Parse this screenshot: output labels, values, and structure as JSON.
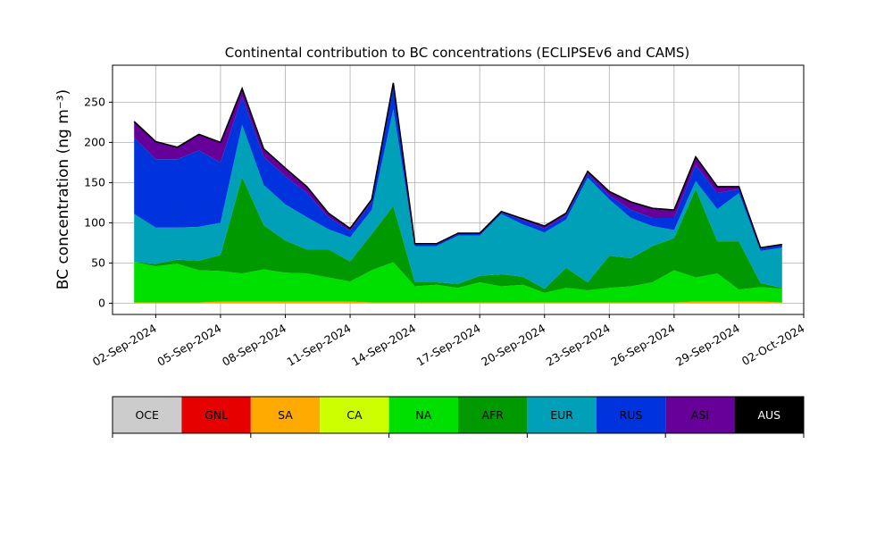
{
  "chart_data": {
    "type": "area",
    "stacked": true,
    "title": "Continental contribution to BC concentrations (ECLIPSEv6 and CAMS)",
    "ylabel": "BC concentration (ng m⁻³)",
    "xlabel": "",
    "grid": true,
    "x_axis_kind": "date",
    "xlim": [
      "2024-08-31",
      "2024-10-02"
    ],
    "ylim": [
      -14,
      296
    ],
    "x_ticks": [
      "2024-09-02",
      "2024-09-05",
      "2024-09-08",
      "2024-09-11",
      "2024-09-14",
      "2024-09-17",
      "2024-09-20",
      "2024-09-23",
      "2024-09-26",
      "2024-09-29",
      "2024-10-02"
    ],
    "x_tick_labels": [
      "02-Sep-2024",
      "05-Sep-2024",
      "08-Sep-2024",
      "11-Sep-2024",
      "14-Sep-2024",
      "17-Sep-2024",
      "20-Sep-2024",
      "23-Sep-2024",
      "26-Sep-2024",
      "29-Sep-2024",
      "02-Oct-2024"
    ],
    "y_ticks": [
      0,
      50,
      100,
      150,
      200,
      250
    ],
    "y_tick_labels": [
      "0",
      "50",
      "100",
      "150",
      "200",
      "250"
    ],
    "x": [
      "2024-09-01",
      "2024-09-02",
      "2024-09-03",
      "2024-09-04",
      "2024-09-05",
      "2024-09-06",
      "2024-09-07",
      "2024-09-08",
      "2024-09-09",
      "2024-09-10",
      "2024-09-11",
      "2024-09-12",
      "2024-09-13",
      "2024-09-14",
      "2024-09-15",
      "2024-09-16",
      "2024-09-17",
      "2024-09-18",
      "2024-09-19",
      "2024-09-20",
      "2024-09-21",
      "2024-09-22",
      "2024-09-23",
      "2024-09-24",
      "2024-09-25",
      "2024-09-26",
      "2024-09-27",
      "2024-09-28",
      "2024-09-29",
      "2024-09-30",
      "2024-10-01"
    ],
    "series": [
      {
        "name": "OCE",
        "color": "#cccccc",
        "values": [
          0,
          0,
          0,
          0,
          0,
          0,
          0,
          0,
          0,
          0,
          0,
          0,
          0,
          0,
          0,
          0,
          0,
          0,
          0,
          0,
          0,
          0,
          0,
          0,
          0,
          0,
          0,
          0,
          0,
          0,
          0
        ]
      },
      {
        "name": "GNL",
        "color": "#e60000",
        "values": [
          0,
          0,
          0,
          0,
          0,
          0,
          0,
          0,
          0,
          0,
          0,
          0,
          0,
          0,
          0,
          0,
          0,
          0,
          0,
          0,
          0,
          0,
          0,
          0,
          0,
          0,
          0,
          0,
          0,
          0,
          0
        ]
      },
      {
        "name": "SA",
        "color": "#ffaa00",
        "values": [
          1,
          1,
          1,
          1,
          2,
          2,
          2,
          2,
          2,
          2,
          2,
          1,
          1,
          1,
          1,
          1,
          1,
          1,
          1,
          1,
          1,
          1,
          1,
          1,
          1,
          1,
          2,
          2,
          2,
          2,
          1
        ]
      },
      {
        "name": "CA",
        "color": "#ccff00",
        "values": [
          0,
          0,
          0,
          0,
          0,
          0,
          0,
          0,
          0,
          0,
          0,
          0,
          0,
          0,
          0,
          0,
          0,
          0,
          0,
          0,
          0,
          0,
          0,
          0,
          0,
          0,
          0,
          0,
          0,
          0,
          0
        ]
      },
      {
        "name": "NA",
        "color": "#00e000",
        "values": [
          50,
          45,
          48,
          40,
          38,
          35,
          40,
          36,
          35,
          30,
          25,
          40,
          50,
          20,
          22,
          18,
          25,
          20,
          22,
          12,
          18,
          15,
          18,
          20,
          25,
          40,
          30,
          35,
          15,
          18,
          17
        ]
      },
      {
        "name": "AFR",
        "color": "#009900",
        "values": [
          0,
          3,
          5,
          12,
          20,
          120,
          55,
          40,
          30,
          35,
          25,
          45,
          70,
          5,
          3,
          5,
          8,
          15,
          10,
          5,
          25,
          10,
          40,
          35,
          45,
          40,
          110,
          40,
          60,
          5,
          1
        ]
      },
      {
        "name": "EUR",
        "color": "#00a0b8",
        "values": [
          60,
          45,
          40,
          42,
          40,
          65,
          50,
          45,
          40,
          25,
          30,
          30,
          120,
          45,
          45,
          60,
          50,
          75,
          65,
          70,
          60,
          130,
          70,
          50,
          25,
          10,
          10,
          40,
          60,
          40,
          50
        ]
      },
      {
        "name": "RUS",
        "color": "#0033dd",
        "values": [
          95,
          85,
          85,
          95,
          75,
          35,
          35,
          35,
          30,
          15,
          8,
          10,
          28,
          2,
          2,
          2,
          2,
          2,
          5,
          5,
          5,
          5,
          5,
          10,
          10,
          15,
          20,
          20,
          5,
          3,
          3
        ]
      },
      {
        "name": "ASI",
        "color": "#660099",
        "values": [
          20,
          22,
          15,
          20,
          25,
          10,
          10,
          10,
          8,
          5,
          3,
          3,
          5,
          1,
          1,
          1,
          1,
          1,
          2,
          3,
          3,
          3,
          5,
          10,
          12,
          10,
          10,
          8,
          3,
          1,
          1
        ]
      },
      {
        "name": "AUS",
        "color": "#000000",
        "values": [
          0,
          0,
          0,
          0,
          0,
          0,
          0,
          0,
          0,
          0,
          0,
          0,
          0,
          0,
          0,
          0,
          0,
          0,
          0,
          0,
          0,
          0,
          0,
          0,
          0,
          0,
          0,
          0,
          0,
          0,
          0
        ]
      }
    ]
  }
}
